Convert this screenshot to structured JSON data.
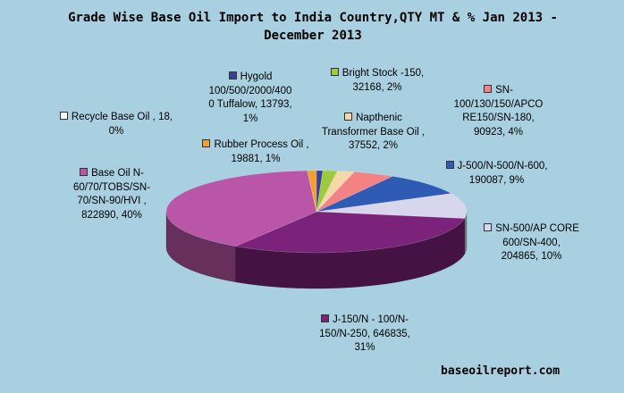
{
  "chart_data": {
    "type": "pie",
    "title": "Grade Wise Base Oil Import to India Country,QTY MT & % Jan 2013 - December 2013",
    "title_lines": [
      "Grade Wise Base Oil Import to India Country,QTY MT & % Jan 2013 -",
      "December 2013"
    ],
    "slices": [
      {
        "label": "Hygold 100/500/2000/4000 Tuffalow",
        "value": 13793,
        "percent": "1%",
        "color": "#3b3f9c",
        "text": [
          "Hygold",
          "100/500/2000/400",
          "0 Tuffalow, 13793,",
          "1%"
        ]
      },
      {
        "label": "Bright Stock -150",
        "value": 32168,
        "percent": "2%",
        "color": "#9ccc3c",
        "text": [
          "Bright Stock -150,",
          "32168, 2%"
        ]
      },
      {
        "label": "Napthenic Transformer Base Oil",
        "value": 37552,
        "percent": "2%",
        "color": "#f7d7a8",
        "text": [
          "Napthenic",
          "Transformer Base Oil ,",
          "37552, 2%"
        ]
      },
      {
        "label": "SN-100/130/150/APCORE150/SN-180",
        "value": 90923,
        "percent": "4%",
        "color": "#f28283",
        "text": [
          "SN-",
          "100/130/150/APCO",
          "RE150/SN-180,",
          "90923, 4%"
        ]
      },
      {
        "label": "J-500/N-500/N-600",
        "value": 190087,
        "percent": "9%",
        "color": "#2f5bb5",
        "text": [
          "J-500/N-500/N-600,",
          "190087, 9%"
        ]
      },
      {
        "label": "SN-500/AP CORE 600/SN-400",
        "value": 204865,
        "percent": "10%",
        "color": "#d8d6ec",
        "text": [
          "SN-500/AP CORE",
          "600/SN-400,",
          "204865, 10%"
        ]
      },
      {
        "label": "J-150/N - 100/N-150/N-250",
        "value": 646835,
        "percent": "31%",
        "color": "#7b237b",
        "text": [
          "J-150/N - 100/N-",
          "150/N-250, 646835,",
          "31%"
        ]
      },
      {
        "label": "Base Oil N-60/70/TOBS/SN-70/SN-90/HVI",
        "value": 822890,
        "percent": "40%",
        "color": "#b956a8",
        "text": [
          "Base Oil N-",
          "60/70/TOBS/SN-",
          "70/SN-90/HVI ,",
          "822890, 40%"
        ]
      },
      {
        "label": "Recycle Base Oil",
        "value": 18,
        "percent": "0%",
        "color": "#ffffff",
        "text": [
          "Recycle Base Oil , 18,",
          "0%"
        ]
      },
      {
        "label": "Rubber Process Oil",
        "value": 19881,
        "percent": "1%",
        "color": "#f0a030",
        "text": [
          "Rubber Process Oil ,",
          "19881, 1%"
        ]
      }
    ]
  },
  "footer": "baseoilreport.com"
}
